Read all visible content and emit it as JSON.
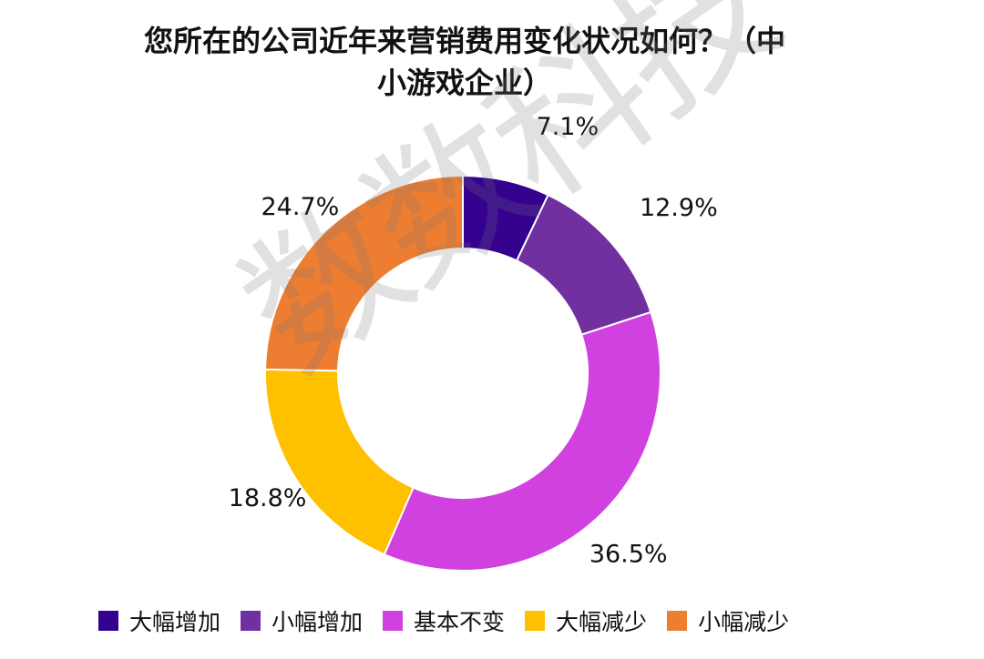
{
  "title": {
    "line1": "您所在的公司近年来营销费用变化状况如何？（中",
    "line2": "小游戏企业）"
  },
  "watermark": "数数科技",
  "chart_data": {
    "type": "pie",
    "variant": "donut",
    "categories": [
      "大幅增加",
      "小幅增加",
      "基本不变",
      "大幅减少",
      "小幅减少"
    ],
    "values": [
      7.1,
      12.9,
      36.5,
      18.8,
      24.7
    ],
    "value_labels": [
      "7.1%",
      "12.9%",
      "36.5%",
      "18.8%",
      "24.7%"
    ],
    "colors": [
      "#35018f",
      "#7030a0",
      "#d141e0",
      "#ffc000",
      "#ed7d31"
    ],
    "legend_position": "bottom"
  }
}
